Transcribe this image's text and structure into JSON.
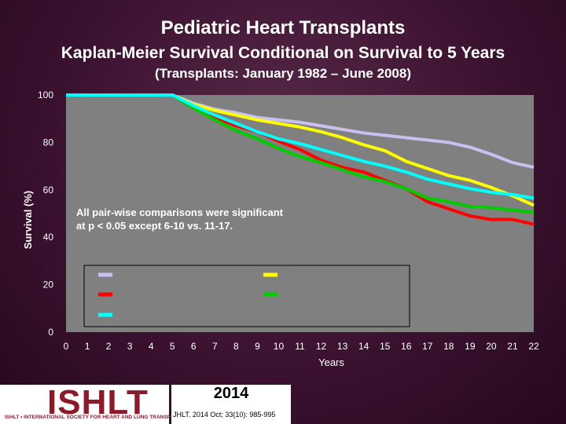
{
  "titles": {
    "main": "Pediatric Heart Transplants",
    "subtitle": "Kaplan-Meier Survival Conditional on Survival to 5 Years",
    "date_range": "(Transplants: January 1982 – June 2008)"
  },
  "annotation": [
    "All pair-wise comparisons were significant",
    "at p < 0.05 except 6-10 vs. 11-17."
  ],
  "footer": {
    "logo": "ISHLT",
    "logo_sub": "ISHLT • INTERNATIONAL SOCIETY FOR HEART AND LUNG TRANSPLANTATION",
    "year": "2014",
    "citation": "JHLT. 2014 Oct; 33(10): 985-995"
  },
  "colors": {
    "background": "#3b1230",
    "plot_bg": "#808080",
    "lavender": "#c8c0f0",
    "yellow": "#ffff00",
    "red": "#ff0000",
    "green": "#00cc00",
    "cyan": "#00ffff"
  },
  "chart_data": {
    "type": "line",
    "title": "",
    "xlabel": "Years",
    "ylabel": "Survival (%)",
    "xlim": [
      0,
      22
    ],
    "ylim": [
      0,
      100
    ],
    "x_ticks": [
      "0",
      "1",
      "2",
      "3",
      "4",
      "5",
      "6",
      "7",
      "8",
      "9",
      "10",
      "11",
      "12",
      "13",
      "14",
      "15",
      "16",
      "17",
      "18",
      "19",
      "20",
      "21",
      "22"
    ],
    "y_ticks": [
      "0",
      "20",
      "40",
      "60",
      "80",
      "100"
    ],
    "grid": false,
    "legend_position": "bottom-center",
    "series": [
      {
        "color_key": "lavender",
        "x": [
          0,
          5,
          6,
          7,
          8,
          9,
          10,
          11,
          12,
          13,
          14,
          15,
          16,
          17,
          18,
          19,
          20,
          21,
          22
        ],
        "y": [
          100,
          100,
          96.5,
          94,
          92.5,
          90.5,
          89.5,
          88.5,
          87,
          85.5,
          84,
          83,
          82,
          81,
          80,
          78,
          75,
          71.5,
          69.5
        ]
      },
      {
        "color_key": "yellow",
        "x": [
          0,
          5,
          6,
          7,
          8,
          9,
          10,
          11,
          12,
          13,
          14,
          15,
          16,
          17,
          18,
          19,
          20,
          21,
          22
        ],
        "y": [
          100,
          100,
          96,
          93.5,
          91.5,
          89.5,
          88,
          86.5,
          84.5,
          82,
          79,
          76.5,
          72,
          69,
          66,
          64,
          61,
          57.5,
          53.5
        ]
      },
      {
        "color_key": "red",
        "x": [
          0,
          5,
          6,
          7,
          8,
          9,
          10,
          11,
          12,
          13,
          14,
          15,
          16,
          17,
          18,
          19,
          20,
          21,
          22
        ],
        "y": [
          100,
          100,
          95,
          90.5,
          87,
          84.5,
          80.5,
          77,
          72.5,
          69.5,
          67.5,
          64,
          60.5,
          55,
          52,
          49,
          47.5,
          47.5,
          45.5
        ]
      },
      {
        "color_key": "green",
        "x": [
          0,
          5,
          6,
          7,
          8,
          9,
          10,
          11,
          12,
          13,
          14,
          15,
          16,
          17,
          18,
          19,
          20,
          21,
          22
        ],
        "y": [
          100,
          100,
          94.5,
          89.5,
          85,
          81.5,
          77.5,
          74,
          71.5,
          68.5,
          65.5,
          63.5,
          60.5,
          56.5,
          55,
          53,
          52.5,
          51.5,
          50.5
        ]
      },
      {
        "color_key": "cyan",
        "x": [
          0,
          5,
          6,
          7,
          8,
          9,
          10,
          11,
          12,
          13,
          14,
          15,
          16,
          17,
          18,
          19,
          20,
          21,
          22
        ],
        "y": [
          100,
          100,
          95.5,
          91.5,
          88,
          84.5,
          81.5,
          79.5,
          77,
          74.5,
          72,
          70,
          67.5,
          64.5,
          62.5,
          60.5,
          59,
          58,
          56.5
        ]
      }
    ]
  }
}
